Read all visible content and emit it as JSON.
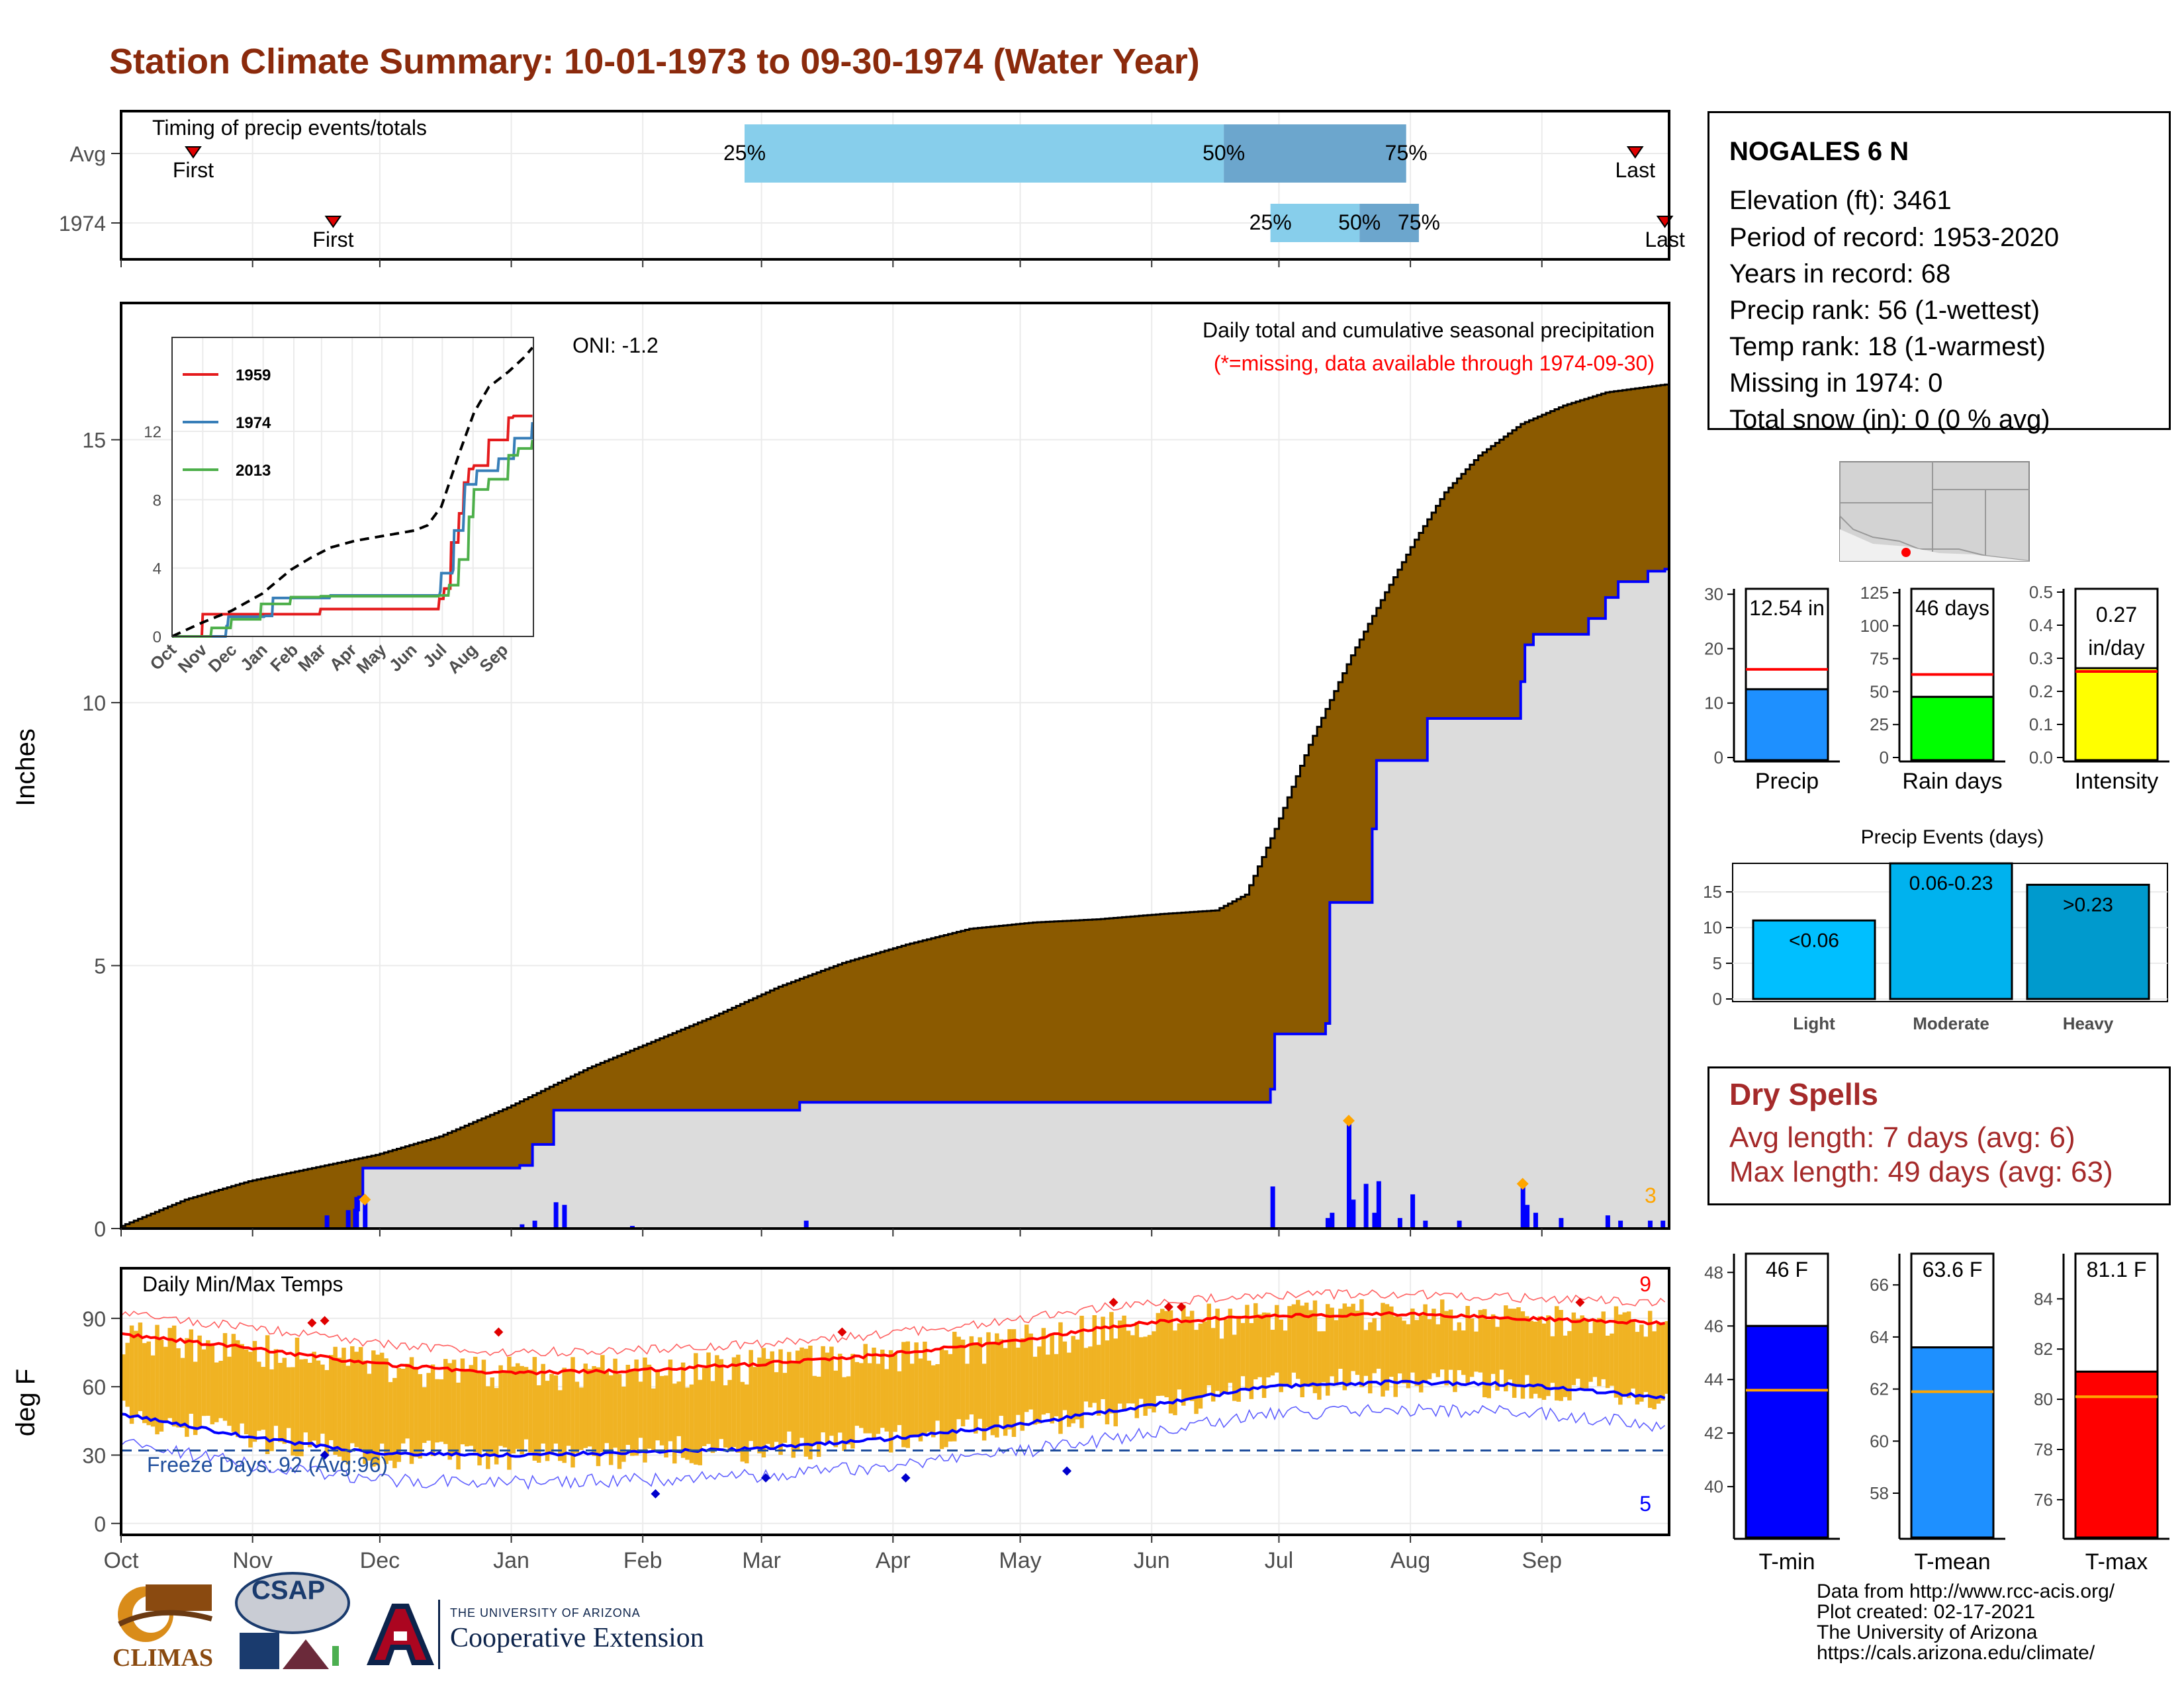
{
  "title": "Station Climate Summary: 10-01-1973 to 09-30-1974 (Water Year)",
  "station": {
    "name": "NOGALES 6 N",
    "lines": [
      "Elevation (ft): 3461",
      "Period of record: 1953-2020",
      "Years in record: 68",
      "Precip rank: 56 (1-wettest)",
      "Temp rank: 18 (1-warmest)",
      "Missing in 1974: 0",
      "Total snow (in): 0 (0 % avg)"
    ]
  },
  "dry_spells": {
    "title": "Dry Spells",
    "avg_line": "Avg length: 7 days (avg: 6)",
    "max_line": "Max length: 49 days (avg: 63)"
  },
  "credits": [
    "Data from http://www.rcc-acis.org/",
    "Plot created: 02-17-2021",
    "The University of Arizona",
    "https://cals.arizona.edu/climate/"
  ],
  "logos": {
    "climas": "CLIMAS",
    "csap": "CSAP",
    "csap_url": "http://cals.arizona.edu/climate",
    "ua_small": "THE UNIVERSITY OF ARIZONA",
    "ua_main": "Cooperative Extension"
  },
  "colors": {
    "title": "#8b2a0c",
    "cum_avg": "#8b5a00",
    "cum_year": "#dcdcdc",
    "cum_line": "#0000ff",
    "daily_bar": "#0000ff",
    "tbar": "#f0b323",
    "tmax": "#ff0000",
    "tmin": "#0000ff",
    "q1": "#87ceeb",
    "q2": "#6ca6cd",
    "precip_bar": "#1e90ff",
    "raindays_bar": "#00ff00",
    "intensity_bar": "#ffff00",
    "light": "#00bfff",
    "moderate": "#00b2ee",
    "heavy": "#009acd",
    "dry": "#a52a2a"
  },
  "months": [
    "Oct",
    "Nov",
    "Dec",
    "Jan",
    "Feb",
    "Mar",
    "Apr",
    "May",
    "Jun",
    "Jul",
    "Aug",
    "Sep"
  ],
  "chart_data": [
    {
      "type": "timeline",
      "title": "Timing of precip events/totals",
      "rows": [
        {
          "label": "Avg",
          "first_day": 17,
          "last_day": 357,
          "p25_day": 147,
          "p50_day": 260,
          "p75_day": 303,
          "first_label": "First",
          "last_label": "Last",
          "pct_labels": [
            "25%",
            "50%",
            "75%"
          ]
        },
        {
          "label": "1974",
          "first_day": 50,
          "last_day": 364,
          "p25_day": 271,
          "p50_day": 292,
          "p75_day": 306,
          "first_label": "First",
          "last_label": "Last",
          "pct_labels": [
            "25%",
            "50%",
            "75%"
          ]
        }
      ]
    },
    {
      "type": "area",
      "title": "Daily total and cumulative seasonal precipitation",
      "subtitle": "(*=missing, data available through 1974-09-30)",
      "oni": "ONI: -1.2",
      "ylabel": "Inches",
      "ylim": [
        0,
        17.6
      ],
      "yticks": [
        0,
        5,
        10,
        15
      ],
      "corner_count": "3",
      "avg_cumulative": {
        "days": [
          0,
          15,
          30,
          45,
          60,
          75,
          91,
          110,
          125,
          140,
          155,
          170,
          185,
          200,
          215,
          230,
          245,
          258,
          265,
          272,
          280,
          290,
          298,
          305,
          312,
          320,
          330,
          340,
          350,
          364
        ],
        "values": [
          0.05,
          0.55,
          0.9,
          1.15,
          1.4,
          1.75,
          2.3,
          3.05,
          3.55,
          4.05,
          4.6,
          5.05,
          5.4,
          5.7,
          5.82,
          5.88,
          5.98,
          6.05,
          6.35,
          7.6,
          9.2,
          10.9,
          12.1,
          13.1,
          14.0,
          14.7,
          15.3,
          15.65,
          15.9,
          16.05
        ]
      },
      "year_cumulative": {
        "days": [
          0,
          48,
          55,
          56,
          57,
          94,
          97,
          102,
          160,
          271,
          272,
          284,
          285,
          295,
          296,
          308,
          330,
          331,
          333,
          346,
          350,
          353,
          360,
          364
        ],
        "values": [
          0,
          0,
          0.35,
          0.6,
          1.15,
          1.2,
          1.6,
          2.25,
          2.4,
          2.65,
          3.7,
          3.9,
          6.2,
          7.6,
          8.9,
          9.7,
          10.4,
          11.1,
          11.3,
          11.6,
          12.0,
          12.3,
          12.5,
          12.54
        ]
      },
      "daily": {
        "days": [
          48,
          53,
          55,
          57,
          94,
          97,
          102,
          104,
          120,
          161,
          271,
          284,
          285,
          289,
          290,
          293,
          295,
          296,
          301,
          304,
          307,
          315,
          330,
          331,
          333,
          339,
          350,
          353,
          360,
          363
        ],
        "values": [
          0.25,
          0.35,
          0.6,
          0.5,
          0.08,
          0.15,
          0.5,
          0.45,
          0.05,
          0.15,
          0.8,
          0.2,
          0.3,
          2.0,
          0.55,
          0.85,
          0.3,
          0.9,
          0.2,
          0.65,
          0.15,
          0.15,
          0.8,
          0.45,
          0.3,
          0.2,
          0.25,
          0.15,
          0.15,
          0.15
        ]
      },
      "record_markers_days": [
        57,
        289,
        330
      ]
    },
    {
      "type": "line",
      "inset": true,
      "yticks": [
        0,
        4,
        8,
        12
      ],
      "ylim": [
        0,
        17.5
      ],
      "xticks": [
        "Oct",
        "Nov",
        "Dec",
        "Jan",
        "Feb",
        "Mar",
        "Apr",
        "May",
        "Jun",
        "Jul",
        "Aug",
        "Sep"
      ],
      "series": [
        {
          "name": "1959",
          "days": [
            0,
            30,
            31,
            150,
            270,
            275,
            282,
            290,
            295,
            300,
            305,
            320,
            340,
            345,
            364
          ],
          "values": [
            0,
            0,
            1.3,
            1.6,
            2.2,
            2.8,
            5.5,
            7.2,
            9.0,
            9.8,
            10.0,
            11.5,
            12.8,
            12.9,
            12.9
          ]
        },
        {
          "name": "1974",
          "days": [
            0,
            48,
            55,
            57,
            94,
            102,
            160,
            271,
            272,
            284,
            285,
            295,
            296,
            308,
            330,
            346,
            364
          ],
          "values": [
            0,
            0,
            0.6,
            1.15,
            1.2,
            2.25,
            2.4,
            2.65,
            3.7,
            3.9,
            6.2,
            7.6,
            8.9,
            9.7,
            10.4,
            11.6,
            12.54
          ]
        },
        {
          "name": "2013",
          "days": [
            0,
            40,
            60,
            90,
            120,
            150,
            270,
            280,
            290,
            300,
            305,
            320,
            340,
            350,
            364
          ],
          "values": [
            0,
            0.5,
            1.0,
            1.9,
            2.3,
            2.35,
            2.4,
            3.0,
            4.5,
            7.0,
            8.6,
            9.2,
            10.6,
            11.0,
            11.5
          ]
        },
        {
          "name": "avg",
          "days": [
            0,
            30,
            60,
            91,
            120,
            140,
            160,
            185,
            215,
            245,
            258,
            272,
            290,
            305,
            320,
            340,
            355,
            364
          ],
          "values": [
            0,
            0.8,
            1.5,
            2.5,
            3.9,
            4.6,
            5.2,
            5.6,
            5.9,
            6.2,
            6.5,
            7.6,
            10.7,
            13.1,
            14.6,
            15.5,
            16.3,
            16.9
          ]
        }
      ]
    },
    {
      "type": "bar",
      "title": "Daily Min/Max Temps",
      "ylabel": "deg F",
      "ylim": [
        -5,
        112
      ],
      "yticks": [
        0,
        30,
        60,
        90
      ],
      "freeze_label": "Freeze Days: 92 (Avg:96)",
      "freeze_line": 32,
      "count_high": "9",
      "count_low": "5",
      "avg_max": {
        "days": [
          0,
          30,
          60,
          90,
          120,
          150,
          180,
          210,
          240,
          270,
          300,
          330,
          364
        ],
        "values": [
          83,
          77,
          70,
          66,
          67,
          70,
          74,
          80,
          88,
          91,
          92,
          90,
          88
        ]
      },
      "avg_min": {
        "days": [
          0,
          30,
          60,
          90,
          120,
          150,
          180,
          210,
          240,
          270,
          300,
          330,
          364
        ],
        "values": [
          48,
          38,
          31,
          30,
          31,
          33,
          37,
          43,
          51,
          60,
          62,
          61,
          55
        ]
      },
      "rec_max_offset": 9,
      "rec_min_offset": -12
    },
    {
      "type": "bar",
      "title": "Precip",
      "value_label": "12.54 in",
      "value": 12.54,
      "avg": 16.2,
      "yticks": [
        0,
        10,
        20,
        30
      ],
      "ylim": [
        0,
        31
      ]
    },
    {
      "type": "bar",
      "title": "Rain days",
      "value_label": "46 days",
      "value": 46,
      "avg": 63,
      "yticks": [
        0,
        25,
        50,
        75,
        100,
        125
      ],
      "ylim": [
        0,
        128
      ]
    },
    {
      "type": "bar",
      "title": "Intensity",
      "value_label": "0.27 in/day",
      "value_line1": "0.27",
      "value_line2": "in/day",
      "value": 0.27,
      "avg": 0.26,
      "yticks": [
        "0.0",
        "0.1",
        "0.2",
        "0.3",
        "0.4",
        "0.5"
      ],
      "ylim": [
        0,
        0.51
      ]
    },
    {
      "type": "bar",
      "title": "Precip Events (days)",
      "categories": [
        "Light",
        "Moderate",
        "Heavy"
      ],
      "bar_labels": [
        "<0.06",
        "0.06-0.23",
        ">0.23"
      ],
      "values": [
        11,
        19,
        16
      ],
      "yticks": [
        0,
        5,
        10,
        15
      ],
      "ylim": [
        0,
        19
      ]
    },
    {
      "type": "bar",
      "title": "T-min",
      "value_label": "46 F",
      "value": 46,
      "avg": 43.6,
      "yticks": [
        40,
        42,
        44,
        46,
        48
      ],
      "ylim": [
        38.2,
        48.7
      ]
    },
    {
      "type": "bar",
      "title": "T-mean",
      "value_label": "63.6 F",
      "value": 63.6,
      "avg": 61.9,
      "yticks": [
        58,
        60,
        62,
        64,
        66
      ],
      "ylim": [
        56.4,
        67.2
      ]
    },
    {
      "type": "bar",
      "title": "T-max",
      "value_label": "81.1 F",
      "value": 81.1,
      "avg": 80.1,
      "yticks": [
        76,
        78,
        80,
        82,
        84
      ],
      "ylim": [
        74.6,
        85.8
      ]
    }
  ]
}
